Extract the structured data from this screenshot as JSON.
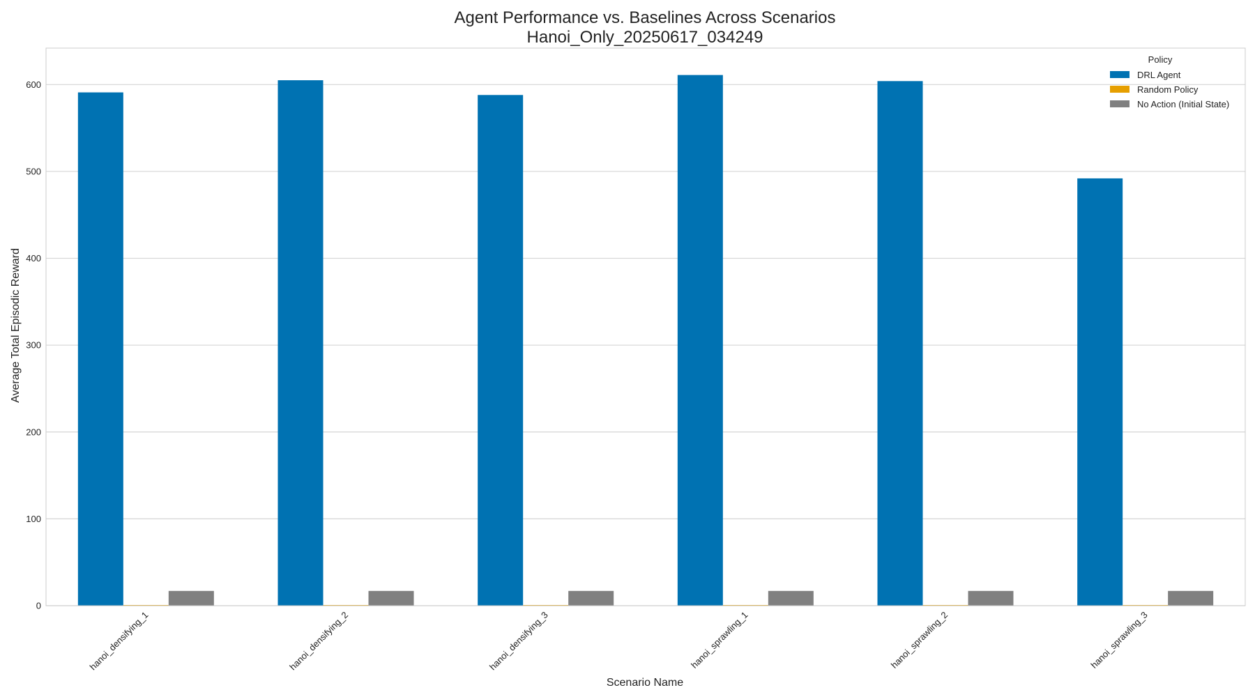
{
  "chart_data": {
    "type": "bar",
    "title": "Agent Performance vs. Baselines Across Scenarios",
    "subtitle": "Hanoi_Only_20250617_034249",
    "xlabel": "Scenario Name",
    "ylabel": "Average Total Episodic Reward",
    "ylim": [
      0,
      642
    ],
    "yticks": [
      0,
      100,
      200,
      300,
      400,
      500,
      600
    ],
    "grid": true,
    "legend": {
      "title": "Policy",
      "placement": "top-right"
    },
    "categories": [
      "hanoi_densifying_1",
      "hanoi_densifying_2",
      "hanoi_densifying_3",
      "hanoi_sprawling_1",
      "hanoi_sprawling_2",
      "hanoi_sprawling_3"
    ],
    "series": [
      {
        "name": "DRL Agent",
        "color": "#0072b2",
        "values": [
          591,
          605,
          588,
          611,
          604,
          492
        ]
      },
      {
        "name": "Random Policy",
        "color": "#e69f00",
        "values": [
          0.8,
          0.8,
          0.8,
          0.8,
          0.8,
          0.8
        ]
      },
      {
        "name": "No Action (Initial State)",
        "color": "#808080",
        "values": [
          17,
          17,
          17,
          17,
          17,
          17
        ]
      }
    ]
  }
}
